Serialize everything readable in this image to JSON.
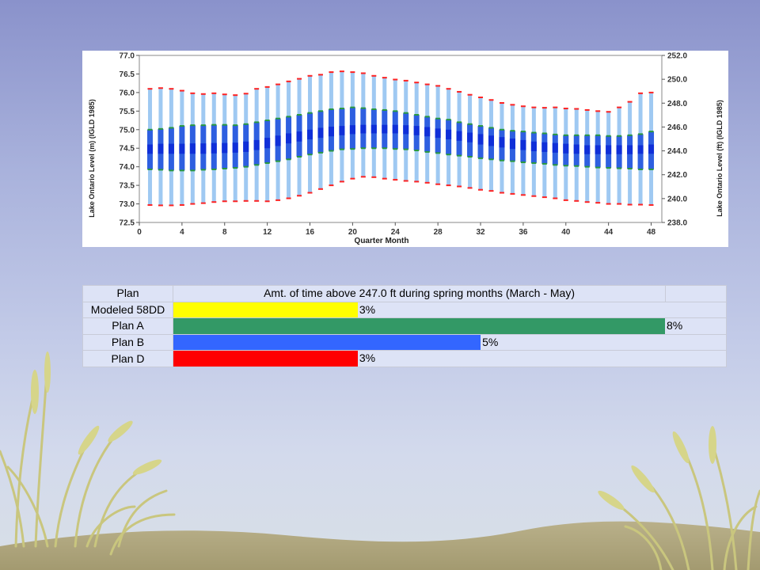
{
  "chart_data": [
    {
      "type": "boxplot",
      "xlabel": "Quarter Month",
      "ylabel_left": "Lake Ontario Level (m) (IGLD 1985)",
      "ylabel_right": "Lake Ontario Level (ft) (IGLD 1985)",
      "xlim": [
        0,
        49
      ],
      "xticks": [
        "0",
        "4",
        "8",
        "12",
        "16",
        "20",
        "24",
        "28",
        "32",
        "36",
        "40",
        "44",
        "48"
      ],
      "ylim_left": [
        72.5,
        77.0
      ],
      "yticks_left": [
        "72.5",
        "73.0",
        "73.5",
        "74.0",
        "74.5",
        "75.0",
        "75.5",
        "76.0",
        "76.5",
        "77.0"
      ],
      "ylim_right": [
        238.0,
        252.0
      ],
      "yticks_right": [
        "238.0",
        "240.0",
        "242.0",
        "244.0",
        "246.0",
        "248.0",
        "250.0",
        "252.0"
      ],
      "x": [
        1,
        2,
        3,
        4,
        5,
        6,
        7,
        8,
        9,
        10,
        11,
        12,
        13,
        14,
        15,
        16,
        17,
        18,
        19,
        20,
        21,
        22,
        23,
        24,
        25,
        26,
        27,
        28,
        29,
        30,
        31,
        32,
        33,
        34,
        35,
        36,
        37,
        38,
        39,
        40,
        41,
        42,
        43,
        44,
        45,
        46,
        47,
        48
      ],
      "max": [
        76.1,
        76.12,
        76.1,
        76.05,
        75.98,
        75.96,
        75.98,
        75.95,
        75.93,
        75.97,
        76.1,
        76.15,
        76.22,
        76.3,
        76.37,
        76.45,
        76.48,
        76.55,
        76.57,
        76.55,
        76.52,
        76.45,
        76.4,
        76.35,
        76.32,
        76.27,
        76.22,
        76.18,
        76.1,
        76.02,
        75.94,
        75.87,
        75.8,
        75.72,
        75.67,
        75.63,
        75.6,
        75.59,
        75.6,
        75.57,
        75.56,
        75.53,
        75.5,
        75.48,
        75.6,
        75.75,
        75.98,
        76.0
      ],
      "q3": [
        75.0,
        75.02,
        75.05,
        75.1,
        75.12,
        75.12,
        75.13,
        75.13,
        75.12,
        75.15,
        75.2,
        75.25,
        75.3,
        75.35,
        75.4,
        75.45,
        75.5,
        75.55,
        75.57,
        75.6,
        75.58,
        75.55,
        75.53,
        75.5,
        75.45,
        75.4,
        75.35,
        75.3,
        75.27,
        75.2,
        75.15,
        75.1,
        75.05,
        75.0,
        74.97,
        74.95,
        74.92,
        74.9,
        74.87,
        74.85,
        74.85,
        74.85,
        74.85,
        74.83,
        74.83,
        74.85,
        74.88,
        74.95
      ],
      "upper_mid": [
        74.6,
        74.62,
        74.62,
        74.62,
        74.63,
        74.63,
        74.64,
        74.64,
        74.65,
        74.68,
        74.72,
        74.78,
        74.84,
        74.9,
        74.95,
        75.0,
        75.05,
        75.08,
        75.1,
        75.12,
        75.13,
        75.13,
        75.13,
        75.13,
        75.12,
        75.1,
        75.07,
        75.03,
        75.0,
        74.96,
        74.92,
        74.88,
        74.84,
        74.8,
        74.76,
        74.72,
        74.68,
        74.66,
        74.64,
        74.62,
        74.6,
        74.58,
        74.58,
        74.58,
        74.58,
        74.58,
        74.58,
        74.6
      ],
      "lower_mid": [
        74.35,
        74.35,
        74.35,
        74.35,
        74.35,
        74.35,
        74.36,
        74.37,
        74.38,
        74.4,
        74.45,
        74.5,
        74.56,
        74.63,
        74.68,
        74.74,
        74.78,
        74.82,
        74.85,
        74.88,
        74.9,
        74.9,
        74.9,
        74.9,
        74.88,
        74.85,
        74.82,
        74.78,
        74.74,
        74.7,
        74.66,
        74.6,
        74.56,
        74.52,
        74.48,
        74.45,
        74.42,
        74.4,
        74.38,
        74.36,
        74.35,
        74.34,
        74.34,
        74.34,
        74.34,
        74.34,
        74.35,
        74.35
      ],
      "q1": [
        73.93,
        73.92,
        73.9,
        73.9,
        73.9,
        73.92,
        73.93,
        73.95,
        73.97,
        74.0,
        74.05,
        74.1,
        74.15,
        74.2,
        74.27,
        74.33,
        74.38,
        74.43,
        74.47,
        74.48,
        74.5,
        74.5,
        74.5,
        74.48,
        74.47,
        74.44,
        74.4,
        74.37,
        74.33,
        74.3,
        74.27,
        74.23,
        74.2,
        74.17,
        74.15,
        74.12,
        74.1,
        74.08,
        74.05,
        74.03,
        74.02,
        74.0,
        73.98,
        73.97,
        73.96,
        73.95,
        73.93,
        73.93
      ],
      "min": [
        72.97,
        72.96,
        72.96,
        72.97,
        73.0,
        73.02,
        73.05,
        73.07,
        73.07,
        73.08,
        73.08,
        73.07,
        73.1,
        73.15,
        73.22,
        73.3,
        73.4,
        73.5,
        73.6,
        73.68,
        73.73,
        73.72,
        73.68,
        73.65,
        73.62,
        73.6,
        73.57,
        73.53,
        73.5,
        73.47,
        73.43,
        73.38,
        73.35,
        73.3,
        73.27,
        73.24,
        73.21,
        73.18,
        73.15,
        73.1,
        73.08,
        73.05,
        73.03,
        73.0,
        73.0,
        72.98,
        72.98,
        72.97
      ],
      "colors": {
        "whisker": "#9fc9f2",
        "box_outer": "#2e5fe0",
        "box_inner": "#0f2fd8",
        "max_marker": "#ff2222",
        "min_marker": "#ff2222",
        "quartile_line": "#2a9a3a"
      }
    },
    {
      "type": "table",
      "header": [
        "Plan",
        "Amt. of time above 247.0 ft during spring months (March - May)"
      ],
      "categories": [
        "Modeled 58DD",
        "Plan A",
        "Plan B",
        "Plan D"
      ],
      "values": [
        3,
        8,
        5,
        3
      ],
      "value_labels": [
        "3%",
        "8%",
        "5%",
        "3%"
      ],
      "scale_max": 8,
      "colors": [
        "#ffff00",
        "#339966",
        "#3366ff",
        "#ff0000"
      ]
    }
  ]
}
